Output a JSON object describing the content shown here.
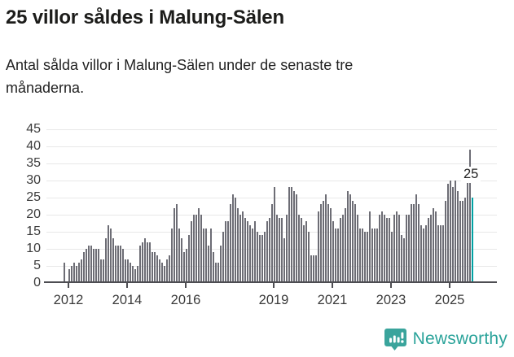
{
  "header": {
    "title": "25 villor såldes i Malung-Sälen",
    "subtitle_line1": "Antal sålda villor i Malung-Sälen under de senaste tre",
    "subtitle_line2": "månaderna."
  },
  "chart_data": {
    "type": "bar",
    "title": "25 villor såldes i Malung-Sälen",
    "description": "Antal sålda villor i Malung-Sälen under de senaste tre månaderna.",
    "start_month": "2011-11",
    "end_month": "2025-10",
    "x_tick_labels": [
      "2012",
      "2014",
      "2016",
      "2019",
      "2021",
      "2023",
      "2025"
    ],
    "y_ticks": [
      0,
      5,
      10,
      15,
      20,
      25,
      30,
      35,
      40,
      45
    ],
    "ylim": [
      0,
      45
    ],
    "grid": true,
    "bar_color": "#6d6d75",
    "series": [
      {
        "name": "Antal sålda villor",
        "values": [
          6,
          0,
          4,
          5,
          6,
          5,
          6,
          7,
          9,
          10,
          11,
          11,
          10,
          10,
          10,
          7,
          7,
          13,
          17,
          16,
          13,
          11,
          11,
          11,
          10,
          7,
          7,
          6,
          5,
          4,
          5,
          11,
          12,
          13,
          12,
          12,
          9,
          9,
          8,
          7,
          6,
          5,
          7,
          8,
          16,
          22,
          23,
          16,
          13,
          9,
          10,
          14,
          18,
          20,
          20,
          22,
          20,
          16,
          16,
          11,
          16,
          9,
          6,
          6,
          11,
          15,
          18,
          18,
          23,
          26,
          25,
          22,
          20,
          21,
          19,
          18,
          17,
          16,
          18,
          15,
          14,
          14,
          15,
          18,
          19,
          23,
          28,
          20,
          19,
          19,
          13,
          20,
          28,
          28,
          27,
          26,
          20,
          19,
          17,
          18,
          15,
          8,
          8,
          8,
          21,
          23,
          24,
          26,
          23,
          22,
          18,
          16,
          16,
          19,
          20,
          22,
          27,
          26,
          24,
          23,
          20,
          16,
          16,
          15,
          15,
          21,
          16,
          16,
          16,
          20,
          21,
          20,
          19,
          19,
          15,
          20,
          21,
          20,
          14,
          13,
          20,
          20,
          23,
          23,
          26,
          23,
          17,
          16,
          17,
          19,
          20,
          22,
          21,
          17,
          17,
          17,
          24,
          29,
          30,
          28,
          30,
          27,
          24,
          24,
          25,
          34,
          39,
          25
        ]
      }
    ],
    "highlight": {
      "label": "25",
      "value": 25,
      "position": "last-bar",
      "color": "#00a1a3"
    }
  },
  "footer": {
    "brand": "Newsworthy"
  },
  "colors": {
    "bar_gray": "#6d6d75",
    "highlight_teal": "#00a1a3",
    "brand_teal": "#2aa39a",
    "axis": "#4d4d52",
    "grid": "#e8e8e8"
  }
}
